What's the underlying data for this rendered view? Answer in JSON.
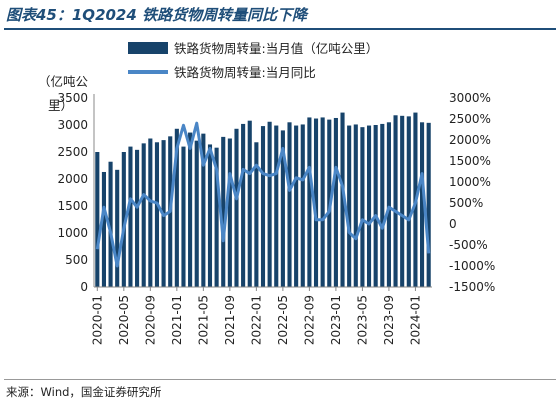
{
  "title": "图表45：1Q2024 铁路货物周转量同比下降",
  "source": "来源：Wind，国金证券研究所",
  "colors": {
    "bar": "#17436a",
    "line": "#4a86c6",
    "title": "#1f4e79"
  },
  "chart_data": {
    "type": "bar",
    "title": "",
    "ylabel_left": "（亿吨公里）",
    "ylim_left": [
      0,
      3500
    ],
    "ylim_right": [
      -1500,
      3000
    ],
    "y_left_ticks": [
      "0",
      "500",
      "1000",
      "1500",
      "2000",
      "2500",
      "3000",
      "3500"
    ],
    "y_right_ticks": [
      "-1500%",
      "-1000%",
      "-500%",
      "0",
      "500%",
      "1000%",
      "1500%",
      "2000%",
      "2500%",
      "3000%"
    ],
    "x_tick_labels": [
      "2020-01",
      "2020-05",
      "2020-09",
      "2021-01",
      "2021-05",
      "2021-09",
      "2022-01",
      "2022-05",
      "2022-09",
      "2023-01",
      "2023-05",
      "2023-09",
      "2024-01"
    ],
    "legend_position": "top",
    "categories": [
      "2020-01",
      "2020-02",
      "2020-03",
      "2020-04",
      "2020-05",
      "2020-06",
      "2020-07",
      "2020-08",
      "2020-09",
      "2020-10",
      "2020-11",
      "2020-12",
      "2021-01",
      "2021-02",
      "2021-03",
      "2021-04",
      "2021-05",
      "2021-06",
      "2021-07",
      "2021-08",
      "2021-09",
      "2021-10",
      "2021-11",
      "2021-12",
      "2022-01",
      "2022-02",
      "2022-03",
      "2022-04",
      "2022-05",
      "2022-06",
      "2022-07",
      "2022-08",
      "2022-09",
      "2022-10",
      "2022-11",
      "2022-12",
      "2023-01",
      "2023-02",
      "2023-03",
      "2023-04",
      "2023-05",
      "2023-06",
      "2023-07",
      "2023-08",
      "2023-09",
      "2023-10",
      "2023-11",
      "2023-12",
      "2024-01",
      "2024-02",
      "2024-03"
    ],
    "series": [
      {
        "name": "铁路货物周转量:当月值（亿吨公里）",
        "type": "bar",
        "axis": "left",
        "values": [
          2500,
          2130,
          2320,
          2170,
          2500,
          2600,
          2540,
          2660,
          2750,
          2680,
          2720,
          2790,
          2930,
          2600,
          2860,
          2710,
          2840,
          2640,
          2580,
          2780,
          2750,
          2930,
          3020,
          3080,
          2680,
          2980,
          3060,
          2990,
          2900,
          3050,
          2990,
          3010,
          3140,
          3120,
          3140,
          3100,
          3130,
          3230,
          2990,
          3010,
          2960,
          2990,
          3000,
          3020,
          3050,
          3180,
          3170,
          3160,
          3230,
          3050,
          3040
        ]
      },
      {
        "name": "铁路货物周转量:当月同比",
        "type": "line",
        "axis": "right",
        "values": [
          -600,
          400,
          -200,
          -1000,
          -100,
          600,
          400,
          700,
          550,
          500,
          200,
          300,
          1800,
          2350,
          1800,
          2400,
          1400,
          1800,
          1300,
          -400,
          1200,
          600,
          1300,
          1200,
          1400,
          1200,
          1150,
          1200,
          1800,
          800,
          1100,
          1050,
          1350,
          100,
          100,
          300,
          1350,
          900,
          -200,
          -350,
          100,
          0,
          200,
          -100,
          400,
          300,
          200,
          100,
          500,
          1200,
          -700
        ]
      }
    ]
  }
}
